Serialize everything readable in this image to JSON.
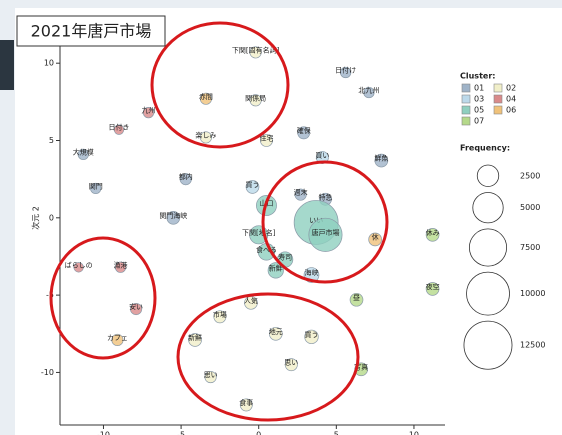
{
  "chart_data": {
    "type": "scatter",
    "title": "2021年唐戸市場",
    "y_label": "次元 2",
    "xlim": [
      -12.8,
      12.0
    ],
    "ylim": [
      -13.4,
      11.5
    ],
    "xticks": [
      -10,
      -5,
      0,
      5,
      10
    ],
    "yticks": [
      -10,
      -5,
      0,
      5,
      10
    ],
    "legend_title": "Cluster:",
    "size_legend_title": "Frequency:",
    "size_legend": [
      2500,
      5000,
      7500,
      10000,
      12500
    ],
    "series": [
      {
        "name": "01",
        "color": "#9fb3c8",
        "x": [
          -11.3,
          -10.5,
          -4.7,
          -5.5,
          2.9,
          5.6,
          7.1,
          2.7,
          7.9,
          4.3
        ],
        "y": [
          4.1,
          1.9,
          2.5,
          0,
          5.5,
          9.4,
          8.1,
          1.5,
          3.7,
          1.2
        ],
        "sizes": [
          600,
          600,
          700,
          900,
          800,
          600,
          600,
          700,
          900,
          800
        ],
        "labels": [
          "大規模",
          "関門",
          "都内",
          "関門海峡",
          "確保",
          "日付け",
          "北九州",
          "週末",
          "鮮魚",
          "特急"
        ]
      },
      {
        "name": "02",
        "color": "#f1efc9",
        "x": [
          -0.2,
          -0.2,
          -3.4,
          0.5,
          -0.5,
          -2.5,
          -4.1,
          -3.1,
          1.1,
          3.4,
          2.1,
          -0.8
        ],
        "y": [
          10.7,
          7.6,
          5.2,
          5.0,
          -5.5,
          -6.4,
          -7.9,
          -10.3,
          -7.5,
          -7.7,
          -9.5,
          -12.1
        ],
        "sizes": [
          700,
          700,
          700,
          800,
          900,
          800,
          900,
          700,
          900,
          1000,
          800,
          800
        ],
        "labels": [
          "下関[固有名詞]",
          "関係局",
          "楽しみ",
          "住宅",
          "人気",
          "市場",
          "新鮮",
          "思い",
          "地元",
          "買う",
          "思い",
          "食事"
        ]
      },
      {
        "name": "03",
        "color": "#bcd9ea",
        "x": [
          -0.4,
          4.1,
          3.4
        ],
        "y": [
          2.0,
          3.9,
          -3.7
        ],
        "sizes": [
          900,
          800,
          1200
        ],
        "labels": [
          "買う",
          "買い",
          "海峡"
        ]
      },
      {
        "name": "04",
        "color": "#d98a8a",
        "x": [
          -7.1,
          -9.0,
          -8.9,
          -7.9,
          -11.6
        ],
        "y": [
          6.8,
          5.7,
          -3.2,
          -5.9,
          -3.2
        ],
        "sizes": [
          600,
          500,
          600,
          700,
          500
        ],
        "labels": [
          "九州",
          "日付き",
          "漁港",
          "安い",
          "ばらしの"
        ]
      },
      {
        "name": "05",
        "color": "#8fcfbf",
        "x": [
          0.5,
          0,
          0.5,
          1.7,
          1.1,
          3.7,
          4.3
        ],
        "y": [
          0.8,
          -1.1,
          -2.2,
          -2.7,
          -3.4,
          -0.3,
          -1.1
        ],
        "sizes": [
          2200,
          1800,
          1500,
          1300,
          1300,
          10500,
          6000
        ],
        "labels": [
          "山口",
          "下関[地名]",
          "食べる",
          "寿司",
          "新鮮",
          "いい",
          "唐戸市場"
        ]
      },
      {
        "name": "06",
        "color": "#f0c27a",
        "x": [
          -3.4,
          7.5,
          -9.1
        ],
        "y": [
          7.7,
          -1.4,
          -7.9
        ],
        "sizes": [
          700,
          900,
          700
        ],
        "labels": [
          "赤間",
          "休",
          "カフェ"
        ]
      },
      {
        "name": "07",
        "color": "#b5d98a",
        "x": [
          11.2,
          11.2,
          6.3,
          6.6
        ],
        "y": [
          -1.1,
          -4.6,
          -5.3,
          -9.8
        ],
        "sizes": [
          900,
          900,
          900,
          900
        ],
        "labels": [
          "休み",
          "夜空",
          "昼",
          "写真"
        ]
      }
    ]
  }
}
